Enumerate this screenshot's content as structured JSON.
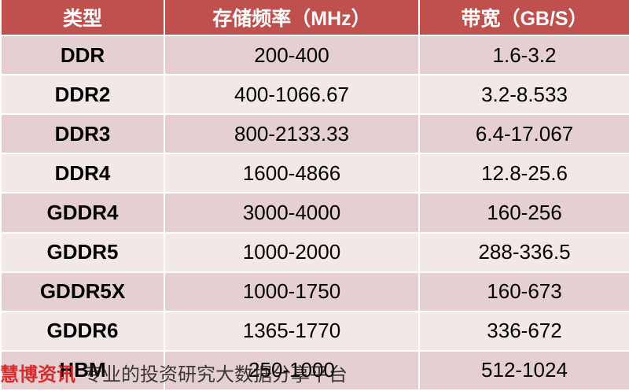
{
  "table": {
    "headers": {
      "type": "类型",
      "frequency": "存储频率（MHz）",
      "bandwidth": "带宽（GB/S）"
    },
    "rows": [
      {
        "type": "DDR",
        "frequency": "200-400",
        "bandwidth": "1.6-3.2"
      },
      {
        "type": "DDR2",
        "frequency": "400-1066.67",
        "bandwidth": "3.2-8.533"
      },
      {
        "type": "DDR3",
        "frequency": "800-2133.33",
        "bandwidth": "6.4-17.067"
      },
      {
        "type": "DDR4",
        "frequency": "1600-4866",
        "bandwidth": "12.8-25.6"
      },
      {
        "type": "GDDR4",
        "frequency": "3000-4000",
        "bandwidth": "160-256"
      },
      {
        "type": "GDDR5",
        "frequency": "1000-2000",
        "bandwidth": "288-336.5"
      },
      {
        "type": "GDDR5X",
        "frequency": "1000-1750",
        "bandwidth": "160-673"
      },
      {
        "type": "GDDR6",
        "frequency": "1365-1770",
        "bandwidth": "336-672"
      },
      {
        "type": "HBM",
        "frequency": "250-1000",
        "bandwidth": "512-1024"
      }
    ]
  },
  "watermark": {
    "brand": "慧博资讯",
    "slogan": "专业的投资研究大数据分享平台"
  },
  "colors": {
    "header_bg": "#c0504d",
    "row_odd_bg": "#e6cfd0",
    "row_even_bg": "#f2e8e8",
    "watermark_brand": "#d81e1e"
  }
}
